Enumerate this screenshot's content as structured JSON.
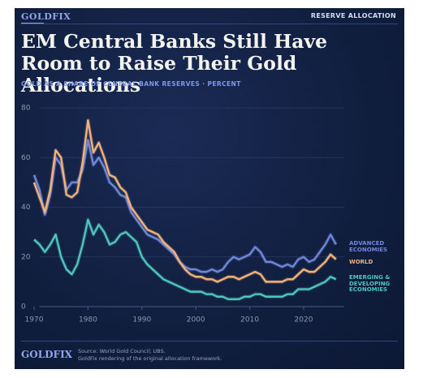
{
  "header": {
    "brand": "GOLDFIX",
    "section": "RESERVE ALLOCATION"
  },
  "footer": {
    "brand": "GOLDFIX",
    "source": "Source: World Gold Council; UBS.",
    "note": "GoldFix rendering of the original allocation framework."
  },
  "chart_data": {
    "type": "line",
    "title": "EM Central Banks Still Have Room to Raise Their Gold Allocations",
    "subtitle": "GOLD AS A SHARE OF CENTRAL BANK RESERVES · PERCENT",
    "x": [
      1970,
      1971,
      1972,
      1973,
      1974,
      1975,
      1976,
      1977,
      1978,
      1979,
      1980,
      1981,
      1982,
      1983,
      1984,
      1985,
      1986,
      1987,
      1988,
      1989,
      1990,
      1991,
      1992,
      1993,
      1994,
      1995,
      1996,
      1997,
      1998,
      1999,
      2000,
      2001,
      2002,
      2003,
      2004,
      2005,
      2006,
      2007,
      2008,
      2009,
      2010,
      2011,
      2012,
      2013,
      2014,
      2015,
      2016,
      2017,
      2018,
      2019,
      2020,
      2021,
      2022,
      2023,
      2024,
      2025,
      2026
    ],
    "xlim": [
      1969.5,
      2027.5
    ],
    "xticks": [
      1970,
      1980,
      1990,
      2000,
      2010,
      2020
    ],
    "ylim": [
      0,
      80
    ],
    "yticks": [
      0,
      20,
      40,
      60,
      80
    ],
    "grid": true,
    "series": [
      {
        "name": "ADVANCED ECONOMIES",
        "color": "#6f87d8",
        "values": [
          53,
          47,
          37,
          45,
          60,
          57,
          47,
          50,
          50,
          55,
          67,
          57,
          60,
          56,
          50,
          48,
          45,
          44,
          38,
          35,
          32,
          29,
          28,
          27,
          25,
          23,
          21,
          18,
          16,
          15,
          15,
          14,
          14,
          15,
          14,
          15,
          18,
          20,
          19,
          20,
          21,
          24,
          22,
          18,
          18,
          17,
          16,
          17,
          16,
          19,
          20,
          18,
          19,
          22,
          25,
          29,
          25
        ]
      },
      {
        "name": "WORLD",
        "color": "#f1b27c",
        "values": [
          50,
          44,
          38,
          47,
          63,
          60,
          45,
          44,
          46,
          58,
          75,
          62,
          66,
          60,
          53,
          52,
          48,
          46,
          40,
          37,
          34,
          31,
          30,
          29,
          26,
          24,
          22,
          18,
          15,
          13,
          12,
          12,
          11,
          11,
          10,
          11,
          12,
          12,
          11,
          12,
          13,
          14,
          13,
          10,
          10,
          10,
          10,
          11,
          11,
          13,
          15,
          14,
          14,
          16,
          18,
          21,
          19
        ]
      },
      {
        "name": "EMERGING & DEVELOPING ECONOMIES",
        "color": "#4ec6bb",
        "values": [
          27,
          25,
          22,
          25,
          29,
          20,
          15,
          13,
          17,
          25,
          35,
          29,
          33,
          30,
          25,
          26,
          29,
          30,
          28,
          26,
          20,
          17,
          15,
          13,
          11,
          10,
          9,
          8,
          7,
          6,
          6,
          6,
          5,
          5,
          4,
          4,
          3,
          3,
          3,
          4,
          4,
          5,
          5,
          4,
          4,
          4,
          4,
          5,
          5,
          7,
          7,
          7,
          8,
          9,
          10,
          12,
          11
        ]
      }
    ]
  }
}
